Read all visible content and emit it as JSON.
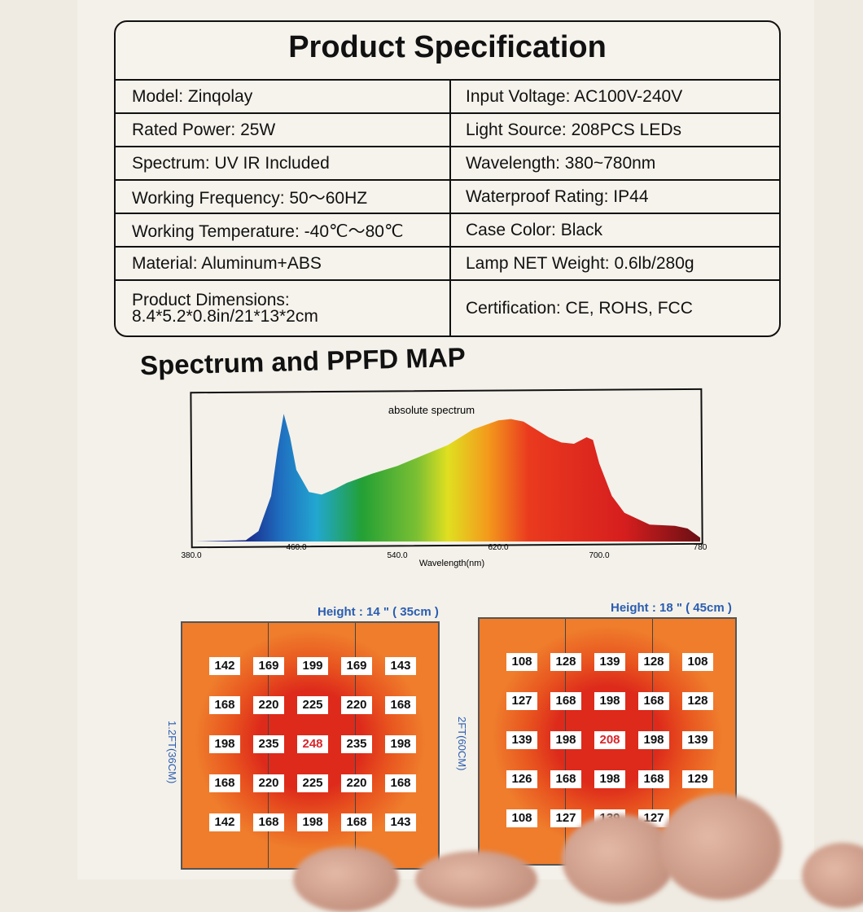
{
  "spec": {
    "title": "Product Specification",
    "rows": [
      [
        "Model: Zinqolay",
        "Input Voltage: AC100V-240V"
      ],
      [
        "Rated Power: 25W",
        "Light Source: 208PCS LEDs"
      ],
      [
        "Spectrum: UV IR Included",
        "Wavelength: 380~780nm"
      ],
      [
        "Working Frequency: 50～60HZ",
        "Waterproof Rating: IP44"
      ],
      [
        "Working Temperature: -40℃～80℃",
        "Case Color: Black"
      ],
      [
        "Material: Aluminum+ABS",
        "Lamp NET Weight: 0.6lb/280g"
      ],
      [
        "Product Dimensions:\n8.4*5.2*0.8in/21*13*2cm",
        "Certification: CE, ROHS, FCC"
      ]
    ]
  },
  "section_title": "Spectrum and PPFD MAP",
  "chart_data": [
    {
      "type": "area",
      "title": "absolute spectrum",
      "xlabel": "Wavelength(nm)",
      "ylabel": "",
      "xlim": [
        380,
        780
      ],
      "x_ticks": [
        "380.0",
        "460.0",
        "540.0",
        "620.0",
        "700.0",
        "780"
      ],
      "y_scale": "relative intensity",
      "x": [
        380,
        420,
        430,
        440,
        445,
        450,
        455,
        460,
        470,
        480,
        490,
        500,
        520,
        540,
        560,
        580,
        600,
        620,
        630,
        640,
        650,
        660,
        670,
        680,
        690,
        695,
        700,
        710,
        720,
        740,
        760,
        770,
        780
      ],
      "y": [
        0,
        0.01,
        0.08,
        0.35,
        0.7,
        0.98,
        0.8,
        0.55,
        0.38,
        0.36,
        0.4,
        0.45,
        0.52,
        0.58,
        0.66,
        0.74,
        0.86,
        0.93,
        0.94,
        0.92,
        0.86,
        0.8,
        0.76,
        0.75,
        0.8,
        0.78,
        0.6,
        0.35,
        0.22,
        0.13,
        0.12,
        0.1,
        0.03
      ],
      "fill": "visible-spectrum gradient"
    },
    {
      "type": "heatmap",
      "title": "Height : 14 \" ( 35cm )",
      "side_label": "1.2FT(36CM)",
      "unit": "PPFD",
      "values": [
        [
          142,
          169,
          199,
          169,
          143
        ],
        [
          168,
          220,
          225,
          220,
          168
        ],
        [
          198,
          235,
          248,
          235,
          198
        ],
        [
          168,
          220,
          225,
          220,
          168
        ],
        [
          142,
          168,
          198,
          168,
          143
        ]
      ],
      "max_highlight_color": "#d8252a"
    },
    {
      "type": "heatmap",
      "title": "Height : 18 \" ( 45cm )",
      "side_label": "2FT(60CM)",
      "unit": "PPFD",
      "values": [
        [
          108,
          128,
          139,
          128,
          108
        ],
        [
          127,
          168,
          198,
          168,
          128
        ],
        [
          139,
          198,
          208,
          198,
          139
        ],
        [
          126,
          168,
          198,
          168,
          129
        ],
        [
          108,
          127,
          139,
          127,
          null
        ]
      ],
      "max_highlight_color": "#d8252a"
    }
  ],
  "colors": {
    "heat_outer": "#ef7d2c",
    "heat_mid": "#e8541f",
    "heat_core": "#dd2a1b",
    "label_blue": "#2a5db0"
  }
}
